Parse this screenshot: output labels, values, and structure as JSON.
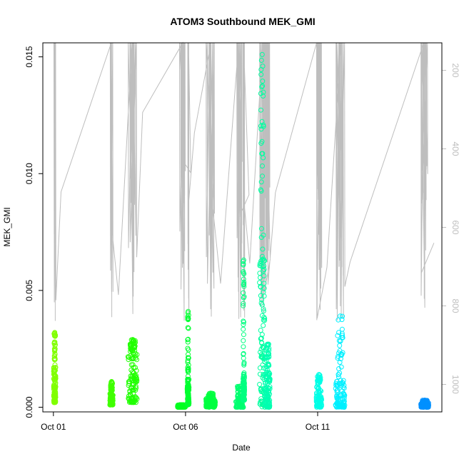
{
  "chart_data": {
    "type": "scatter",
    "title": "ATOM3 Southbound MEK_GMI",
    "xlabel": "Date",
    "ylabel": "MEK_GMI",
    "x_ticks": [
      {
        "day": 1,
        "label": "Oct 01"
      },
      {
        "day": 6,
        "label": "Oct 06"
      },
      {
        "day": 11,
        "label": "Oct 11"
      }
    ],
    "xlim_days": [
      0.6,
      15.7
    ],
    "ylim": [
      -0.0002,
      0.0156
    ],
    "y_ticks": [
      {
        "value": 0.0,
        "label": "0.000"
      },
      {
        "value": 0.005,
        "label": "0.005"
      },
      {
        "value": 0.01,
        "label": "0.010"
      },
      {
        "value": 0.015,
        "label": "0.015"
      }
    ],
    "secondary_axis": {
      "side": "right",
      "reversed": true,
      "lim": [
        1070,
        130
      ],
      "ticks": [
        {
          "value": 200,
          "label": "200"
        },
        {
          "value": 400,
          "label": "400"
        },
        {
          "value": 600,
          "label": "600"
        },
        {
          "value": 800,
          "label": "800"
        },
        {
          "value": 1000,
          "label": "1000"
        }
      ],
      "series_color": "#bebebe"
    },
    "point_clusters": [
      {
        "day": 1.05,
        "width": 0.08,
        "ymin": 0.0002,
        "ymax": 0.0032,
        "dense_max": 0.0018,
        "color": "#80ff00"
      },
      {
        "day": 3.2,
        "width": 0.12,
        "ymin": 0.0001,
        "ymax": 0.0011,
        "dense_max": 0.0006,
        "color": "#40ff00"
      },
      {
        "day": 4.0,
        "width": 0.35,
        "ymin": 0.0002,
        "ymax": 0.0029,
        "dense_max": 0.0024,
        "color": "#20ff00"
      },
      {
        "day": 5.85,
        "width": 0.3,
        "ymin": 0.0,
        "ymax": 0.0001,
        "dense_max": 0.0001,
        "color": "#00ff20"
      },
      {
        "day": 6.1,
        "width": 0.07,
        "ymin": 0.0001,
        "ymax": 0.0041,
        "dense_max": 0.0012,
        "color": "#00ff30"
      },
      {
        "day": 6.95,
        "width": 0.35,
        "ymin": 0.0,
        "ymax": 0.0006,
        "dense_max": 0.0004,
        "color": "#00ff40"
      },
      {
        "day": 8.05,
        "width": 0.3,
        "ymin": 0.0,
        "ymax": 0.0009,
        "dense_max": 0.0004,
        "color": "#00ff70"
      },
      {
        "day": 8.2,
        "width": 0.06,
        "ymin": 0.0003,
        "ymax": 0.0063,
        "dense_max": 0.0015,
        "color": "#00ff80"
      },
      {
        "day": 8.9,
        "width": 0.2,
        "ymin": 0.0,
        "ymax": 0.0151,
        "dense_max": 0.0065,
        "color": "#00ffa0"
      },
      {
        "day": 9.1,
        "width": 0.2,
        "ymin": 0.0,
        "ymax": 0.0027,
        "dense_max": 0.0015,
        "color": "#00ffb0"
      },
      {
        "day": 11.05,
        "width": 0.2,
        "ymin": 0.0,
        "ymax": 0.0014,
        "dense_max": 0.0009,
        "color": "#00ffe6"
      },
      {
        "day": 11.85,
        "width": 0.35,
        "ymin": 0.0,
        "ymax": 0.0039,
        "dense_max": 0.0012,
        "color": "#00f0ff"
      },
      {
        "day": 15.05,
        "width": 0.3,
        "ymin": 0.0,
        "ymax": 0.0003,
        "dense_max": 0.0002,
        "color": "#0090ff"
      }
    ]
  }
}
